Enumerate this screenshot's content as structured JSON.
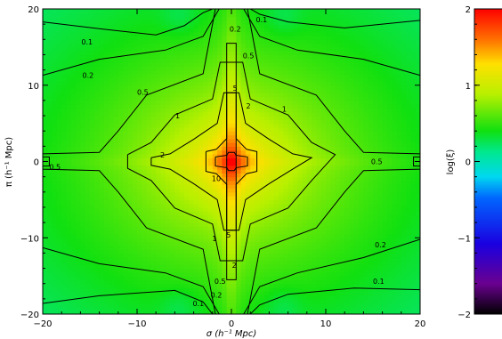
{
  "chart_data": {
    "type": "heatmap",
    "xlabel": "σ (h⁻¹ Mpc)",
    "ylabel": "π (h⁻¹ Mpc)",
    "colorbar_label": "log(ξ)",
    "xlim": [
      -20,
      20
    ],
    "ylim": [
      -20,
      20
    ],
    "x_ticks": [
      -20,
      -10,
      0,
      10,
      20
    ],
    "y_ticks": [
      -20,
      -10,
      0,
      10,
      20
    ],
    "colorbar_range": [
      -2,
      2
    ],
    "colorbar_ticks": [
      -2,
      -1,
      0,
      1,
      2
    ],
    "colormap": "rainbow (black-purple-blue-cyan-green-yellow-red)",
    "peak_value_log": 2.0,
    "contour_levels": [
      0.1,
      0.2,
      0.5,
      1,
      2,
      5,
      10
    ],
    "contour_labels": [
      {
        "text": "0.1",
        "x": -15.3,
        "y": 15.7
      },
      {
        "text": "0.2",
        "x": -15.2,
        "y": 11.3
      },
      {
        "text": "0.5",
        "x": -9.4,
        "y": 9.1
      },
      {
        "text": "1",
        "x": -5.7,
        "y": 6.0
      },
      {
        "text": "2",
        "x": -7.3,
        "y": 0.9
      },
      {
        "text": "0.5",
        "x": -18.7,
        "y": -0.7
      },
      {
        "text": "0.1",
        "x": 3.2,
        "y": 18.6
      },
      {
        "text": "0.2",
        "x": 0.4,
        "y": 17.4
      },
      {
        "text": "0.5",
        "x": 1.8,
        "y": 13.9
      },
      {
        "text": "5",
        "x": 0.4,
        "y": 9.6
      },
      {
        "text": "2",
        "x": 1.8,
        "y": 7.3
      },
      {
        "text": "1",
        "x": 5.6,
        "y": 6.9
      },
      {
        "text": "10",
        "x": -1.6,
        "y": -2.2
      },
      {
        "text": "1",
        "x": -1.8,
        "y": -10.1
      },
      {
        "text": "5",
        "x": -0.3,
        "y": -9.6
      },
      {
        "text": "2",
        "x": 0.3,
        "y": -13.6
      },
      {
        "text": "0.5",
        "x": -1.2,
        "y": -15.7
      },
      {
        "text": "0.2",
        "x": -1.6,
        "y": -17.5
      },
      {
        "text": "0.1",
        "x": -3.5,
        "y": -18.6
      },
      {
        "text": "0.5",
        "x": 15.4,
        "y": 0.0
      },
      {
        "text": "0.2",
        "x": 15.8,
        "y": -10.9
      },
      {
        "text": "0.1",
        "x": 15.6,
        "y": -15.7
      }
    ]
  }
}
